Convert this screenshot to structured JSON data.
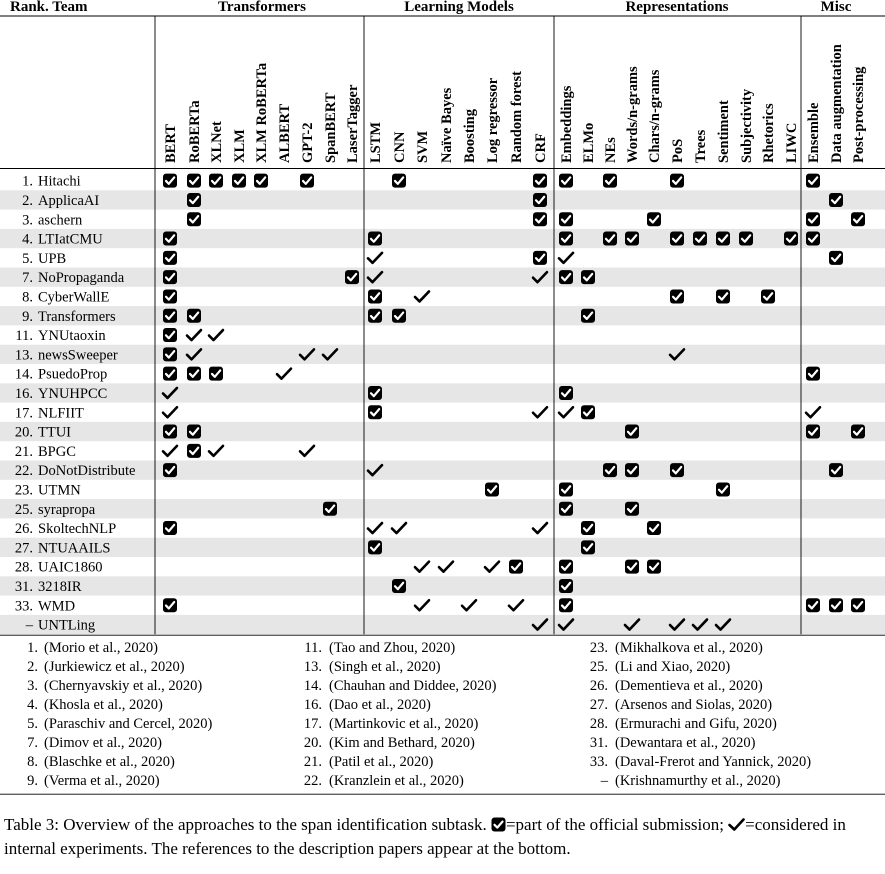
{
  "groups": [
    "Transformers",
    "Learning Models",
    "Representations",
    "Misc"
  ],
  "team_header": "Rank. Team",
  "columns": [
    "BERT",
    "RoBERTa",
    "XLNet",
    "XLM",
    "XLM RoBERTa",
    "ALBERT",
    "GPT-2",
    "SpanBERT",
    "LaserTagger",
    "LSTM",
    "CNN",
    "SVM",
    "Naïve Bayes",
    "Boosting",
    "Log regressor",
    "Random forest",
    "CRF",
    "Embeddings",
    "ELMo",
    "NEs",
    "Words/n-grams",
    "Chars/n-grams",
    "PoS",
    "Trees",
    "Sentiment",
    "Subjectivity",
    "Rhetorics",
    "LIWC",
    "Ensemble",
    "Data augmentation",
    "Post-processing"
  ],
  "rows": [
    {
      "rank": "1.",
      "team": "Hitachi",
      "marks": [
        [
          0,
          "S"
        ],
        [
          1,
          "S"
        ],
        [
          2,
          "S"
        ],
        [
          3,
          "S"
        ],
        [
          4,
          "S"
        ],
        [
          6,
          "S"
        ],
        [
          10,
          "S"
        ],
        [
          16,
          "S"
        ],
        [
          17,
          "S"
        ],
        [
          19,
          "S"
        ],
        [
          22,
          "S"
        ],
        [
          28,
          "S"
        ]
      ]
    },
    {
      "rank": "2.",
      "team": "ApplicaAI",
      "marks": [
        [
          1,
          "S"
        ],
        [
          16,
          "S"
        ],
        [
          29,
          "S"
        ]
      ]
    },
    {
      "rank": "3.",
      "team": "aschern",
      "marks": [
        [
          1,
          "S"
        ],
        [
          16,
          "S"
        ],
        [
          17,
          "S"
        ],
        [
          21,
          "S"
        ],
        [
          28,
          "S"
        ],
        [
          30,
          "S"
        ]
      ]
    },
    {
      "rank": "4.",
      "team": "LTIatCMU",
      "marks": [
        [
          0,
          "S"
        ],
        [
          9,
          "S"
        ],
        [
          17,
          "S"
        ],
        [
          19,
          "S"
        ],
        [
          20,
          "S"
        ],
        [
          22,
          "S"
        ],
        [
          23,
          "S"
        ],
        [
          24,
          "S"
        ],
        [
          25,
          "S"
        ],
        [
          27,
          "S"
        ],
        [
          28,
          "S"
        ]
      ]
    },
    {
      "rank": "5.",
      "team": "UPB",
      "marks": [
        [
          0,
          "S"
        ],
        [
          9,
          "C"
        ],
        [
          16,
          "S"
        ],
        [
          17,
          "C"
        ],
        [
          29,
          "S"
        ]
      ]
    },
    {
      "rank": "7.",
      "team": "NoPropaganda",
      "marks": [
        [
          0,
          "S"
        ],
        [
          8,
          "S"
        ],
        [
          9,
          "C"
        ],
        [
          16,
          "C"
        ],
        [
          17,
          "S"
        ],
        [
          18,
          "S"
        ]
      ]
    },
    {
      "rank": "8.",
      "team": "CyberWallE",
      "marks": [
        [
          0,
          "S"
        ],
        [
          9,
          "S"
        ],
        [
          11,
          "C"
        ],
        [
          22,
          "S"
        ],
        [
          24,
          "S"
        ],
        [
          26,
          "S"
        ]
      ]
    },
    {
      "rank": "9.",
      "team": "Transformers",
      "marks": [
        [
          0,
          "S"
        ],
        [
          1,
          "S"
        ],
        [
          9,
          "S"
        ],
        [
          10,
          "S"
        ],
        [
          18,
          "S"
        ]
      ]
    },
    {
      "rank": "11.",
      "team": "YNUtaoxin",
      "marks": [
        [
          0,
          "S"
        ],
        [
          1,
          "C"
        ],
        [
          2,
          "C"
        ]
      ]
    },
    {
      "rank": "13.",
      "team": "newsSweeper",
      "marks": [
        [
          0,
          "S"
        ],
        [
          1,
          "C"
        ],
        [
          6,
          "C"
        ],
        [
          7,
          "C"
        ],
        [
          22,
          "C"
        ]
      ]
    },
    {
      "rank": "14.",
      "team": "PsuedoProp",
      "marks": [
        [
          0,
          "S"
        ],
        [
          1,
          "S"
        ],
        [
          2,
          "S"
        ],
        [
          5,
          "C"
        ],
        [
          28,
          "S"
        ]
      ]
    },
    {
      "rank": "16.",
      "team": "YNUHPCC",
      "marks": [
        [
          0,
          "C"
        ],
        [
          9,
          "S"
        ],
        [
          17,
          "S"
        ]
      ]
    },
    {
      "rank": "17.",
      "team": "NLFIIT",
      "marks": [
        [
          0,
          "C"
        ],
        [
          9,
          "S"
        ],
        [
          16,
          "C"
        ],
        [
          17,
          "C"
        ],
        [
          18,
          "S"
        ],
        [
          28,
          "C"
        ]
      ]
    },
    {
      "rank": "20.",
      "team": "TTUI",
      "marks": [
        [
          0,
          "S"
        ],
        [
          1,
          "S"
        ],
        [
          20,
          "S"
        ],
        [
          28,
          "S"
        ],
        [
          30,
          "S"
        ]
      ]
    },
    {
      "rank": "21.",
      "team": "BPGC",
      "marks": [
        [
          0,
          "C"
        ],
        [
          1,
          "S"
        ],
        [
          2,
          "C"
        ],
        [
          6,
          "C"
        ]
      ]
    },
    {
      "rank": "22.",
      "team": "DoNotDistribute",
      "marks": [
        [
          0,
          "S"
        ],
        [
          9,
          "C"
        ],
        [
          19,
          "S"
        ],
        [
          20,
          "S"
        ],
        [
          22,
          "S"
        ],
        [
          29,
          "S"
        ]
      ]
    },
    {
      "rank": "23.",
      "team": "UTMN",
      "marks": [
        [
          14,
          "S"
        ],
        [
          17,
          "S"
        ],
        [
          24,
          "S"
        ]
      ]
    },
    {
      "rank": "25.",
      "team": "syrapropa",
      "marks": [
        [
          7,
          "S"
        ],
        [
          17,
          "S"
        ],
        [
          20,
          "S"
        ]
      ]
    },
    {
      "rank": "26.",
      "team": "SkoltechNLP",
      "marks": [
        [
          0,
          "S"
        ],
        [
          9,
          "C"
        ],
        [
          10,
          "C"
        ],
        [
          16,
          "C"
        ],
        [
          18,
          "S"
        ],
        [
          21,
          "S"
        ]
      ]
    },
    {
      "rank": "27.",
      "team": "NTUAAILS",
      "marks": [
        [
          9,
          "S"
        ],
        [
          18,
          "S"
        ]
      ]
    },
    {
      "rank": "28.",
      "team": "UAIC1860",
      "marks": [
        [
          11,
          "C"
        ],
        [
          12,
          "C"
        ],
        [
          14,
          "C"
        ],
        [
          15,
          "S"
        ],
        [
          17,
          "S"
        ],
        [
          20,
          "S"
        ],
        [
          21,
          "S"
        ]
      ]
    },
    {
      "rank": "31.",
      "team": "3218IR",
      "marks": [
        [
          10,
          "S"
        ],
        [
          17,
          "S"
        ]
      ]
    },
    {
      "rank": "33.",
      "team": "WMD",
      "marks": [
        [
          0,
          "S"
        ],
        [
          11,
          "C"
        ],
        [
          13,
          "C"
        ],
        [
          15,
          "C"
        ],
        [
          17,
          "S"
        ],
        [
          28,
          "S"
        ],
        [
          29,
          "S"
        ],
        [
          30,
          "S"
        ]
      ]
    },
    {
      "rank": "–",
      "team": "UNTLing",
      "marks": [
        [
          16,
          "C"
        ],
        [
          17,
          "C"
        ],
        [
          20,
          "C"
        ],
        [
          22,
          "C"
        ],
        [
          23,
          "C"
        ],
        [
          24,
          "C"
        ]
      ]
    }
  ],
  "references": [
    [
      {
        "num": "1.",
        "ref": "(Morio et al., 2020)"
      },
      {
        "num": "2.",
        "ref": "(Jurkiewicz et al., 2020)"
      },
      {
        "num": "3.",
        "ref": "(Chernyavskiy et al., 2020)"
      },
      {
        "num": "4.",
        "ref": "(Khosla et al., 2020)"
      },
      {
        "num": "5.",
        "ref": "(Paraschiv and Cercel, 2020)"
      },
      {
        "num": "7.",
        "ref": "(Dimov et al., 2020)"
      },
      {
        "num": "8.",
        "ref": "(Blaschke et al., 2020)"
      },
      {
        "num": "9.",
        "ref": "(Verma et al., 2020)"
      }
    ],
    [
      {
        "num": "11.",
        "ref": "(Tao and Zhou, 2020)"
      },
      {
        "num": "13.",
        "ref": "(Singh et al., 2020)"
      },
      {
        "num": "14.",
        "ref": "(Chauhan and Diddee, 2020)"
      },
      {
        "num": "16.",
        "ref": "(Dao et al., 2020)"
      },
      {
        "num": "17.",
        "ref": "(Martinkovic et al., 2020)"
      },
      {
        "num": "20.",
        "ref": "(Kim and Bethard, 2020)"
      },
      {
        "num": "21.",
        "ref": "(Patil et al., 2020)"
      },
      {
        "num": "22.",
        "ref": "(Kranzlein et al., 2020)"
      }
    ],
    [
      {
        "num": "23.",
        "ref": "(Mikhalkova et al., 2020)"
      },
      {
        "num": "25.",
        "ref": "(Li and Xiao, 2020)"
      },
      {
        "num": "26.",
        "ref": "(Dementieva et al., 2020)"
      },
      {
        "num": "27.",
        "ref": "(Arsenos and Siolas, 2020)"
      },
      {
        "num": "28.",
        "ref": "(Ermurachi and Gifu, 2020)"
      },
      {
        "num": "31.",
        "ref": "(Dewantara et al., 2020)"
      },
      {
        "num": "33.",
        "ref": "(Daval-Frerot and Yannick, 2020)"
      },
      {
        "num": "–",
        "ref": "(Krishnamurthy et al., 2020)"
      }
    ]
  ],
  "caption": {
    "label": "Table 3:",
    "text1": " Overview of the approaches to the span identification subtask. ",
    "text2": "=part of the official submission; ",
    "text3": "=considered in internal experiments. The references to the description papers appear at the bottom."
  },
  "colors": {
    "stripe": "#e6e6e6",
    "ink": "#000000"
  }
}
